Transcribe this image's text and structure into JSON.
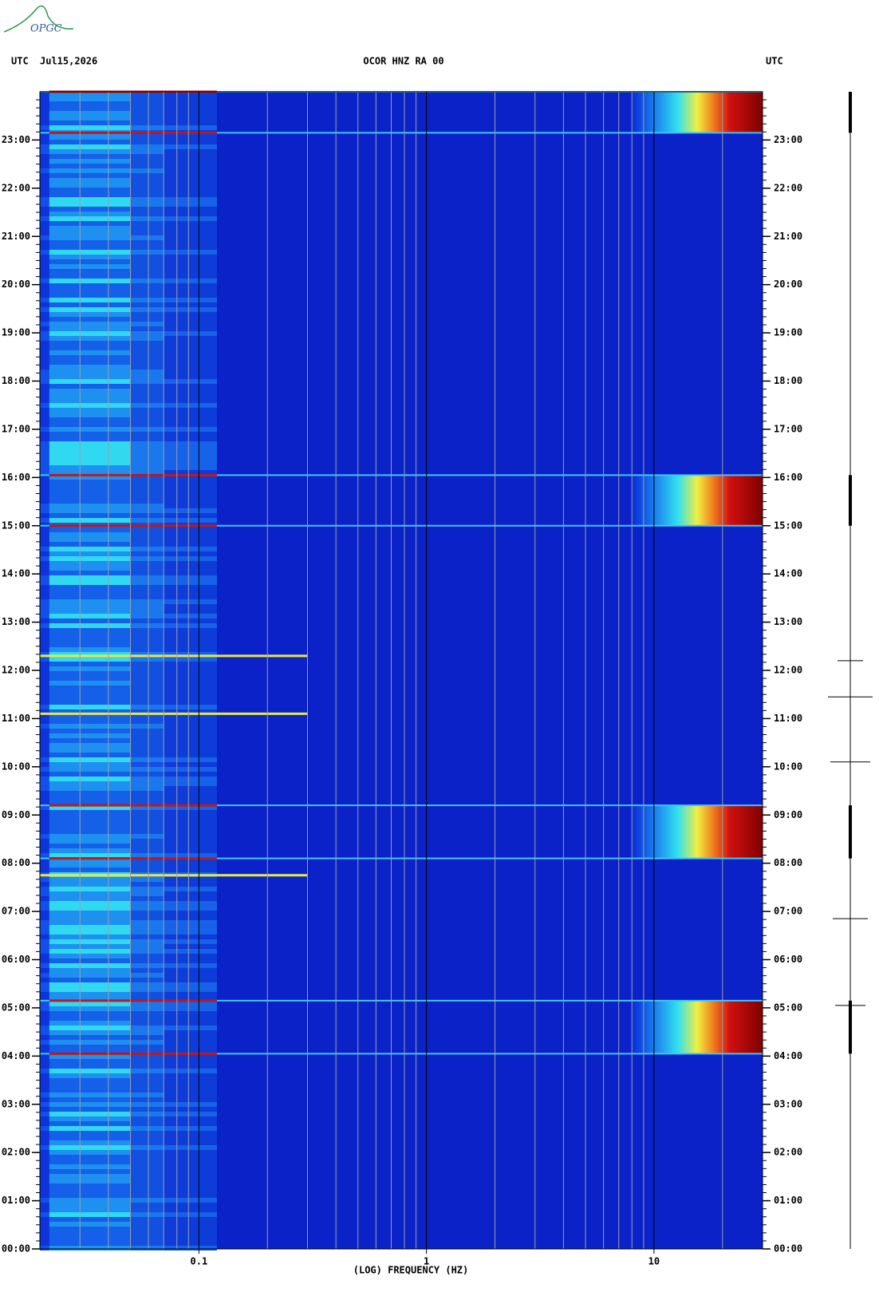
{
  "logo": "OPGC",
  "chart_data": {
    "type": "spectrogram",
    "title": "OCOR HNZ RA 00",
    "date": "Jul15,2026",
    "left_label": "UTC",
    "right_label": "UTC",
    "xlabel": "(LOG) FREQUENCY (HZ)",
    "xscale": "log",
    "xlim": [
      0.02,
      30
    ],
    "xticks": [
      {
        "value": 0.1,
        "label": "0.1"
      },
      1,
      10
    ],
    "ylim": [
      0,
      24
    ],
    "yticks": [
      {
        "value": 0,
        "label": "00:00"
      },
      {
        "value": 1,
        "label": "01:00"
      },
      {
        "value": 2,
        "label": "02:00"
      },
      {
        "value": 3,
        "label": "03:00"
      },
      {
        "value": 4,
        "label": "04:00"
      },
      {
        "value": 5,
        "label": "05:00"
      },
      {
        "value": 6,
        "label": "06:00"
      },
      {
        "value": 7,
        "label": "07:00"
      },
      {
        "value": 8,
        "label": "08:00"
      },
      {
        "value": 9,
        "label": "09:00"
      },
      {
        "value": 10,
        "label": "10:00"
      },
      {
        "value": 11,
        "label": "11:00"
      },
      {
        "value": 12,
        "label": "12:00"
      },
      {
        "value": 13,
        "label": "13:00"
      },
      {
        "value": 14,
        "label": "14:00"
      },
      {
        "value": 15,
        "label": "15:00"
      },
      {
        "value": 16,
        "label": "16:00"
      },
      {
        "value": 17,
        "label": "17:00"
      },
      {
        "value": 18,
        "label": "18:00"
      },
      {
        "value": 19,
        "label": "19:00"
      },
      {
        "value": 20,
        "label": "20:00"
      },
      {
        "value": 21,
        "label": "21:00"
      },
      {
        "value": 22,
        "label": "22:00"
      },
      {
        "value": 23,
        "label": "23:00"
      }
    ],
    "bursts": [
      [
        4.05,
        5.15
      ],
      [
        8.1,
        9.2
      ],
      [
        15.0,
        16.05
      ],
      [
        23.15,
        24
      ]
    ],
    "lines": [
      7.75,
      11.1,
      12.3
    ]
  }
}
